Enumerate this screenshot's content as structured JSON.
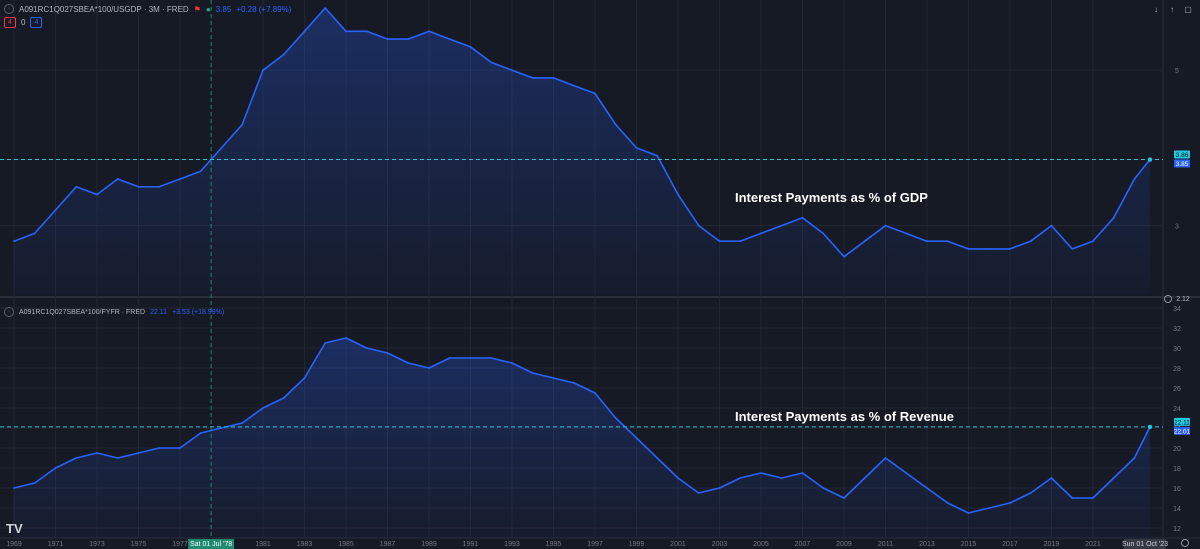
{
  "pane1": {
    "symbol": "A091RC1Q027SBEA*100/USGDP · 3M · FRED",
    "value_text": "3.85",
    "change_text": "+0.28 (+7.89%)",
    "badge_left": "4",
    "badge_mid": "0",
    "badge_right": "4",
    "annotation": "Interest Payments as % of GDP",
    "price_labels": [
      "5",
      "3"
    ],
    "last_label_top": "3.86",
    "last_label_bottom": "3.85",
    "bottom_label": "2.12"
  },
  "pane2": {
    "symbol": "A091RC1Q027SBEA*100/FYFR · FRED",
    "value_text": "22.11",
    "change_text": "+3.53 (+18.99%)",
    "annotation": "Interest Payments as % of Revenue",
    "price_labels": [
      "34",
      "32",
      "30",
      "28",
      "26",
      "24",
      "22",
      "20",
      "18",
      "16",
      "14",
      "12"
    ],
    "last_label_top": "22.11",
    "last_label_bottom": "22.01"
  },
  "time_axis": {
    "labels": [
      "1969",
      "1971",
      "1973",
      "1975",
      "1977",
      "1981",
      "1983",
      "1985",
      "1987",
      "1989",
      "1991",
      "1993",
      "1995",
      "1997",
      "1999",
      "2001",
      "2003",
      "2005",
      "2007",
      "2009",
      "2011",
      "2013",
      "2015",
      "2017",
      "2019",
      "2021"
    ],
    "crosshair_label": "Sat 01 Jul '78",
    "last_label": "Sun 01 Oct '23"
  },
  "logo": "TV",
  "colors": {
    "background": "#161a25",
    "line": "#2962ff",
    "crosshair": "#1f8a70",
    "last_value": "#26c6da",
    "grid": "#232633"
  },
  "icons": [
    "arrow-down-icon",
    "arrow-up-icon",
    "maximize-icon",
    "gear-icon"
  ],
  "chart_data": [
    {
      "type": "area",
      "title": "A091RC1Q027SBEA*100/USGDP",
      "x": [
        1969,
        1970,
        1971,
        1972,
        1973,
        1974,
        1975,
        1976,
        1977,
        1978,
        1979,
        1980,
        1981,
        1982,
        1983,
        1984,
        1985,
        1986,
        1987,
        1988,
        1989,
        1990,
        1991,
        1992,
        1993,
        1994,
        1995,
        1996,
        1997,
        1998,
        1999,
        2000,
        2001,
        2002,
        2003,
        2004,
        2005,
        2006,
        2007,
        2008,
        2009,
        2010,
        2011,
        2012,
        2013,
        2014,
        2015,
        2016,
        2017,
        2018,
        2019,
        2020,
        2021,
        2022,
        2023,
        2023.75
      ],
      "values": [
        2.8,
        2.9,
        3.2,
        3.5,
        3.4,
        3.6,
        3.5,
        3.5,
        3.6,
        3.7,
        4.0,
        4.3,
        5.0,
        5.2,
        5.5,
        5.8,
        5.5,
        5.5,
        5.4,
        5.4,
        5.5,
        5.4,
        5.3,
        5.1,
        5.0,
        4.9,
        4.9,
        4.8,
        4.7,
        4.3,
        4.0,
        3.9,
        3.4,
        3.0,
        2.8,
        2.8,
        2.9,
        3.0,
        3.1,
        2.9,
        2.6,
        2.8,
        3.0,
        2.9,
        2.8,
        2.8,
        2.7,
        2.7,
        2.7,
        2.8,
        3.0,
        2.7,
        2.8,
        3.1,
        3.6,
        3.85
      ],
      "ylim": [
        2.12,
        5.8
      ]
    },
    {
      "type": "area",
      "title": "A091RC1Q027SBEA*100/FYFR",
      "x": [
        1969,
        1970,
        1971,
        1972,
        1973,
        1974,
        1975,
        1976,
        1977,
        1978,
        1979,
        1980,
        1981,
        1982,
        1983,
        1984,
        1985,
        1986,
        1987,
        1988,
        1989,
        1990,
        1991,
        1992,
        1993,
        1994,
        1995,
        1996,
        1997,
        1998,
        1999,
        2000,
        2001,
        2002,
        2003,
        2004,
        2005,
        2006,
        2007,
        2008,
        2009,
        2010,
        2011,
        2012,
        2013,
        2014,
        2015,
        2016,
        2017,
        2018,
        2019,
        2020,
        2021,
        2022,
        2023,
        2023.75
      ],
      "values": [
        16,
        16.5,
        18,
        19,
        19.5,
        19,
        19.5,
        20,
        20,
        21.5,
        22,
        22.5,
        24,
        25,
        27,
        30.5,
        31,
        30,
        29.5,
        28.5,
        28,
        29,
        29,
        29,
        28.5,
        27.5,
        27,
        26.5,
        25.5,
        23,
        21,
        19,
        17,
        15.5,
        16,
        17,
        17.5,
        17,
        17.5,
        16,
        15,
        17,
        19,
        17.5,
        16,
        14.5,
        13.5,
        14,
        14.5,
        15.5,
        17,
        15,
        15,
        17,
        19,
        22.11
      ],
      "ylim": [
        11,
        34
      ]
    }
  ]
}
